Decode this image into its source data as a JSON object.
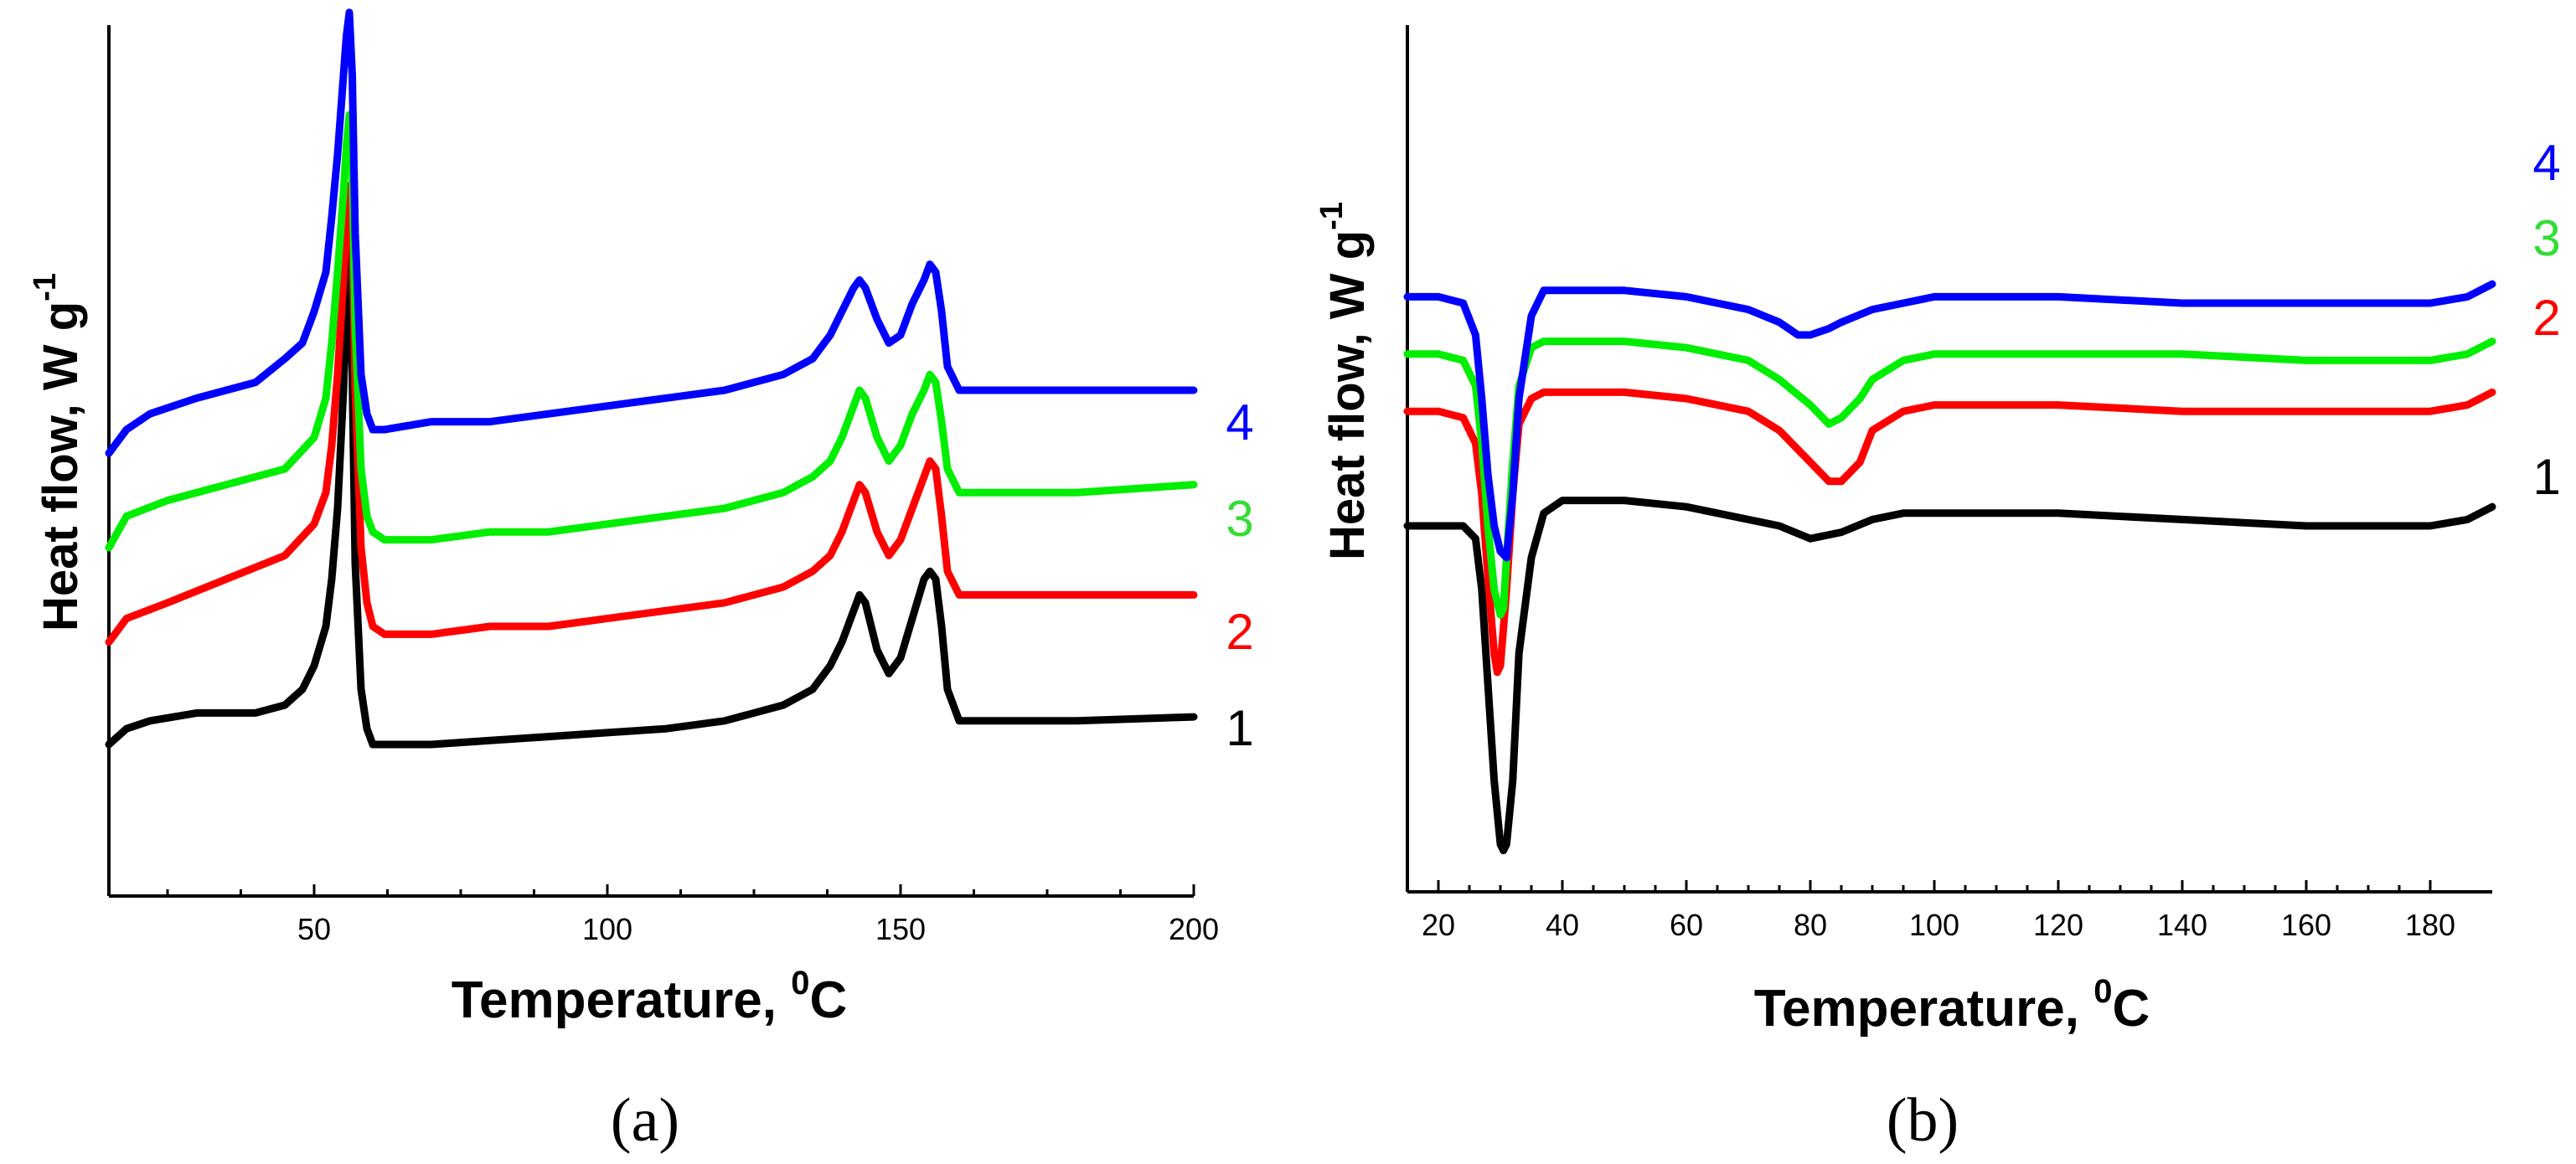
{
  "chart_data": [
    {
      "type": "line",
      "panel_caption": "(a)",
      "xlabel": "Temperature, ",
      "xlabel_sup": "0",
      "xlabel_unit": "C",
      "ylabel": "Heat flow, W g",
      "ylabel_sup": "-1",
      "xlim": [
        15,
        200
      ],
      "ylim": [
        0,
        1
      ],
      "x_ticks": [
        50,
        100,
        150,
        200
      ],
      "x_tick_labels": [
        "50",
        "100",
        "150",
        "200"
      ],
      "y_ticks_shown": false,
      "series": [
        {
          "name": "1",
          "color": "#000000",
          "x": [
            15,
            18,
            22,
            30,
            40,
            45,
            48,
            50,
            52,
            53,
            54,
            55,
            55.5,
            56,
            56.5,
            57,
            58,
            59,
            60,
            62,
            70,
            80,
            90,
            100,
            110,
            120,
            130,
            135,
            138,
            140,
            142,
            143,
            144,
            146,
            148,
            150,
            152,
            154,
            155,
            156,
            157,
            158,
            160,
            165,
            180,
            200
          ],
          "y": [
            0.15,
            0.17,
            0.18,
            0.19,
            0.19,
            0.2,
            0.22,
            0.25,
            0.3,
            0.36,
            0.45,
            0.6,
            0.72,
            0.78,
            0.62,
            0.38,
            0.22,
            0.17,
            0.15,
            0.15,
            0.15,
            0.155,
            0.16,
            0.165,
            0.17,
            0.18,
            0.2,
            0.22,
            0.25,
            0.28,
            0.32,
            0.34,
            0.33,
            0.27,
            0.24,
            0.26,
            0.31,
            0.36,
            0.37,
            0.36,
            0.3,
            0.22,
            0.18,
            0.18,
            0.18,
            0.185
          ]
        },
        {
          "name": "2",
          "color": "#ff0000",
          "x": [
            15,
            18,
            25,
            35,
            45,
            50,
            52,
            53,
            54,
            55,
            55.5,
            56,
            56.5,
            57,
            58,
            59,
            60,
            62,
            70,
            80,
            90,
            100,
            110,
            120,
            130,
            135,
            138,
            140,
            142,
            143,
            144,
            146,
            148,
            150,
            152,
            154,
            155,
            156,
            157,
            158,
            160,
            165,
            180,
            200
          ],
          "y": [
            0.28,
            0.31,
            0.33,
            0.36,
            0.39,
            0.43,
            0.47,
            0.53,
            0.62,
            0.74,
            0.82,
            0.86,
            0.8,
            0.6,
            0.4,
            0.33,
            0.3,
            0.29,
            0.29,
            0.3,
            0.3,
            0.31,
            0.32,
            0.33,
            0.35,
            0.37,
            0.39,
            0.42,
            0.46,
            0.48,
            0.47,
            0.42,
            0.39,
            0.41,
            0.45,
            0.49,
            0.51,
            0.5,
            0.44,
            0.37,
            0.34,
            0.34,
            0.34,
            0.34
          ]
        },
        {
          "name": "3",
          "color": "#00ee00",
          "x": [
            15,
            18,
            25,
            35,
            45,
            50,
            52,
            53,
            54,
            55,
            55.5,
            56,
            56.5,
            57,
            58,
            59,
            60,
            62,
            70,
            80,
            90,
            100,
            110,
            120,
            130,
            135,
            138,
            140,
            142,
            143,
            144,
            146,
            148,
            150,
            152,
            154,
            155,
            156,
            157,
            158,
            160,
            165,
            180,
            200
          ],
          "y": [
            0.4,
            0.44,
            0.46,
            0.48,
            0.5,
            0.54,
            0.59,
            0.66,
            0.75,
            0.85,
            0.91,
            0.95,
            0.88,
            0.68,
            0.5,
            0.44,
            0.42,
            0.41,
            0.41,
            0.42,
            0.42,
            0.43,
            0.44,
            0.45,
            0.47,
            0.49,
            0.51,
            0.54,
            0.58,
            0.6,
            0.59,
            0.54,
            0.51,
            0.53,
            0.57,
            0.6,
            0.62,
            0.61,
            0.56,
            0.5,
            0.47,
            0.47,
            0.47,
            0.48
          ]
        },
        {
          "name": "4",
          "color": "#0000ff",
          "x": [
            15,
            18,
            22,
            30,
            40,
            45,
            48,
            50,
            52,
            53,
            54,
            55,
            55.5,
            56,
            56.5,
            57,
            58,
            59,
            60,
            62,
            70,
            80,
            90,
            100,
            110,
            120,
            130,
            135,
            138,
            140,
            142,
            143,
            144,
            146,
            148,
            150,
            152,
            154,
            155,
            156,
            157,
            158,
            160,
            165,
            180,
            200
          ],
          "y": [
            0.52,
            0.55,
            0.57,
            0.59,
            0.61,
            0.64,
            0.66,
            0.7,
            0.75,
            0.82,
            0.9,
            1.0,
            1.05,
            1.08,
            1.0,
            0.8,
            0.62,
            0.57,
            0.55,
            0.55,
            0.56,
            0.56,
            0.57,
            0.58,
            0.59,
            0.6,
            0.62,
            0.64,
            0.67,
            0.7,
            0.73,
            0.74,
            0.73,
            0.69,
            0.66,
            0.67,
            0.71,
            0.74,
            0.76,
            0.75,
            0.7,
            0.63,
            0.6,
            0.6,
            0.6,
            0.6
          ]
        }
      ]
    },
    {
      "type": "line",
      "panel_caption": "(b)",
      "xlabel": "Temperature, ",
      "xlabel_sup": "0",
      "xlabel_unit": "C",
      "ylabel": "Heat flow, W g",
      "ylabel_sup": "-1",
      "xlim": [
        15,
        190
      ],
      "ylim": [
        0,
        1
      ],
      "x_ticks": [
        20,
        40,
        60,
        80,
        100,
        120,
        140,
        160,
        180
      ],
      "x_tick_labels": [
        "20",
        "40",
        "60",
        "80",
        "100",
        "120",
        "140",
        "160",
        "180"
      ],
      "y_ticks_shown": false,
      "series": [
        {
          "name": "1",
          "color": "#000000",
          "x": [
            15,
            20,
            24,
            26,
            27,
            28,
            29,
            30,
            30.5,
            31,
            32,
            33,
            35,
            37,
            40,
            50,
            60,
            70,
            75,
            80,
            85,
            90,
            95,
            100,
            120,
            140,
            160,
            180,
            186,
            190
          ],
          "y": [
            0.5,
            0.5,
            0.5,
            0.48,
            0.4,
            0.25,
            0.1,
            0.0,
            -0.01,
            0.0,
            0.1,
            0.3,
            0.45,
            0.52,
            0.54,
            0.54,
            0.53,
            0.51,
            0.5,
            0.48,
            0.49,
            0.51,
            0.52,
            0.52,
            0.52,
            0.51,
            0.5,
            0.5,
            0.51,
            0.53
          ]
        },
        {
          "name": "2",
          "color": "#ff0000",
          "x": [
            15,
            20,
            24,
            26,
            27,
            28,
            29,
            29.5,
            30,
            31,
            32,
            33,
            35,
            37,
            40,
            50,
            60,
            70,
            75,
            80,
            83,
            85,
            88,
            90,
            95,
            100,
            120,
            140,
            160,
            180,
            186,
            190
          ],
          "y": [
            0.68,
            0.68,
            0.67,
            0.63,
            0.55,
            0.42,
            0.3,
            0.27,
            0.28,
            0.4,
            0.55,
            0.66,
            0.7,
            0.71,
            0.71,
            0.71,
            0.7,
            0.68,
            0.65,
            0.6,
            0.57,
            0.57,
            0.6,
            0.65,
            0.68,
            0.69,
            0.69,
            0.68,
            0.68,
            0.68,
            0.69,
            0.71
          ]
        },
        {
          "name": "3",
          "color": "#00ee00",
          "x": [
            15,
            20,
            24,
            26,
            27,
            28,
            29,
            30,
            30.5,
            31,
            32,
            33,
            35,
            37,
            40,
            50,
            60,
            70,
            75,
            80,
            83,
            85,
            88,
            90,
            95,
            100,
            120,
            140,
            160,
            180,
            186,
            190
          ],
          "y": [
            0.77,
            0.77,
            0.76,
            0.72,
            0.63,
            0.5,
            0.4,
            0.36,
            0.37,
            0.45,
            0.6,
            0.72,
            0.78,
            0.79,
            0.79,
            0.79,
            0.78,
            0.76,
            0.73,
            0.69,
            0.66,
            0.67,
            0.7,
            0.73,
            0.76,
            0.77,
            0.77,
            0.77,
            0.76,
            0.76,
            0.77,
            0.79
          ]
        },
        {
          "name": "4",
          "color": "#0000ff",
          "x": [
            15,
            20,
            24,
            26,
            27,
            28,
            29,
            30,
            31,
            32,
            33,
            35,
            37,
            40,
            50,
            60,
            70,
            75,
            78,
            80,
            83,
            85,
            90,
            95,
            100,
            120,
            140,
            160,
            180,
            186,
            190
          ],
          "y": [
            0.86,
            0.86,
            0.85,
            0.8,
            0.7,
            0.58,
            0.5,
            0.46,
            0.45,
            0.55,
            0.7,
            0.83,
            0.87,
            0.87,
            0.87,
            0.86,
            0.84,
            0.82,
            0.8,
            0.8,
            0.81,
            0.82,
            0.84,
            0.85,
            0.86,
            0.86,
            0.85,
            0.85,
            0.85,
            0.86,
            0.88
          ]
        }
      ]
    }
  ]
}
